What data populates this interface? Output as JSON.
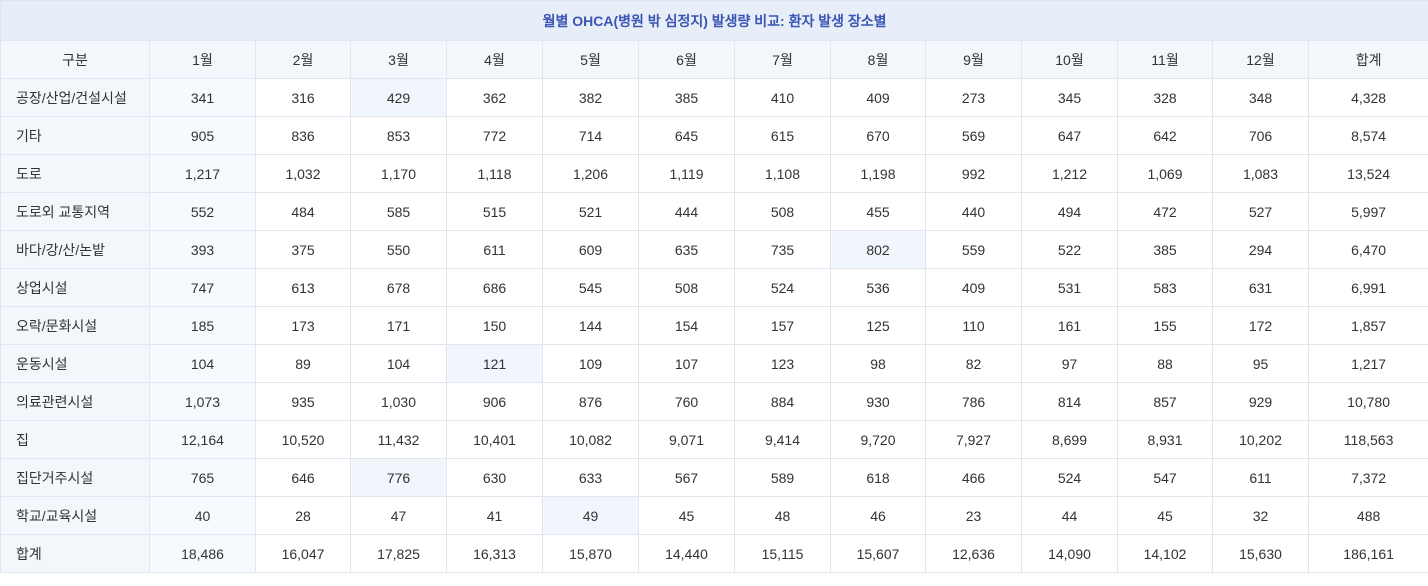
{
  "chart_data": {
    "type": "table",
    "title": "월별 OHCA(병원 밖 심정지) 발생량 비교: 환자 발생 장소별",
    "columns": [
      "구분",
      "1월",
      "2월",
      "3월",
      "4월",
      "5월",
      "6월",
      "7월",
      "8월",
      "9월",
      "10월",
      "11월",
      "12월",
      "합계"
    ],
    "rows": [
      {
        "label": "공장/산업/건설시설",
        "values": [
          "341",
          "316",
          "429",
          "362",
          "382",
          "385",
          "410",
          "409",
          "273",
          "345",
          "328",
          "348",
          "4,328"
        ]
      },
      {
        "label": "기타",
        "values": [
          "905",
          "836",
          "853",
          "772",
          "714",
          "645",
          "615",
          "670",
          "569",
          "647",
          "642",
          "706",
          "8,574"
        ]
      },
      {
        "label": "도로",
        "values": [
          "1,217",
          "1,032",
          "1,170",
          "1,118",
          "1,206",
          "1,119",
          "1,108",
          "1,198",
          "992",
          "1,212",
          "1,069",
          "1,083",
          "13,524"
        ]
      },
      {
        "label": "도로외 교통지역",
        "values": [
          "552",
          "484",
          "585",
          "515",
          "521",
          "444",
          "508",
          "455",
          "440",
          "494",
          "472",
          "527",
          "5,997"
        ]
      },
      {
        "label": "바다/강/산/논밭",
        "values": [
          "393",
          "375",
          "550",
          "611",
          "609",
          "635",
          "735",
          "802",
          "559",
          "522",
          "385",
          "294",
          "6,470"
        ]
      },
      {
        "label": "상업시설",
        "values": [
          "747",
          "613",
          "678",
          "686",
          "545",
          "508",
          "524",
          "536",
          "409",
          "531",
          "583",
          "631",
          "6,991"
        ]
      },
      {
        "label": "오락/문화시설",
        "values": [
          "185",
          "173",
          "171",
          "150",
          "144",
          "154",
          "157",
          "125",
          "110",
          "161",
          "155",
          "172",
          "1,857"
        ]
      },
      {
        "label": "운동시설",
        "values": [
          "104",
          "89",
          "104",
          "121",
          "109",
          "107",
          "123",
          "98",
          "82",
          "97",
          "88",
          "95",
          "1,217"
        ]
      },
      {
        "label": "의료관련시설",
        "values": [
          "1,073",
          "935",
          "1,030",
          "906",
          "876",
          "760",
          "884",
          "930",
          "786",
          "814",
          "857",
          "929",
          "10,780"
        ]
      },
      {
        "label": "집",
        "values": [
          "12,164",
          "10,520",
          "11,432",
          "10,401",
          "10,082",
          "9,071",
          "9,414",
          "9,720",
          "7,927",
          "8,699",
          "8,931",
          "10,202",
          "118,563"
        ]
      },
      {
        "label": "집단거주시설",
        "values": [
          "765",
          "646",
          "776",
          "630",
          "633",
          "567",
          "589",
          "618",
          "466",
          "524",
          "547",
          "611",
          "7,372"
        ]
      },
      {
        "label": "학교/교육시설",
        "values": [
          "40",
          "28",
          "47",
          "41",
          "49",
          "45",
          "48",
          "46",
          "23",
          "44",
          "45",
          "32",
          "488"
        ]
      }
    ],
    "total_row": {
      "label": "합계",
      "values": [
        "18,486",
        "16,047",
        "17,825",
        "16,313",
        "15,870",
        "14,440",
        "15,115",
        "15,607",
        "12,636",
        "14,090",
        "14,102",
        "15,630",
        "186,161"
      ]
    },
    "highlighted_cells": [
      {
        "row": 0,
        "col": 2
      },
      {
        "row": 4,
        "col": 7
      },
      {
        "row": 7,
        "col": 3
      },
      {
        "row": 10,
        "col": 2
      },
      {
        "row": 11,
        "col": 4
      }
    ]
  }
}
